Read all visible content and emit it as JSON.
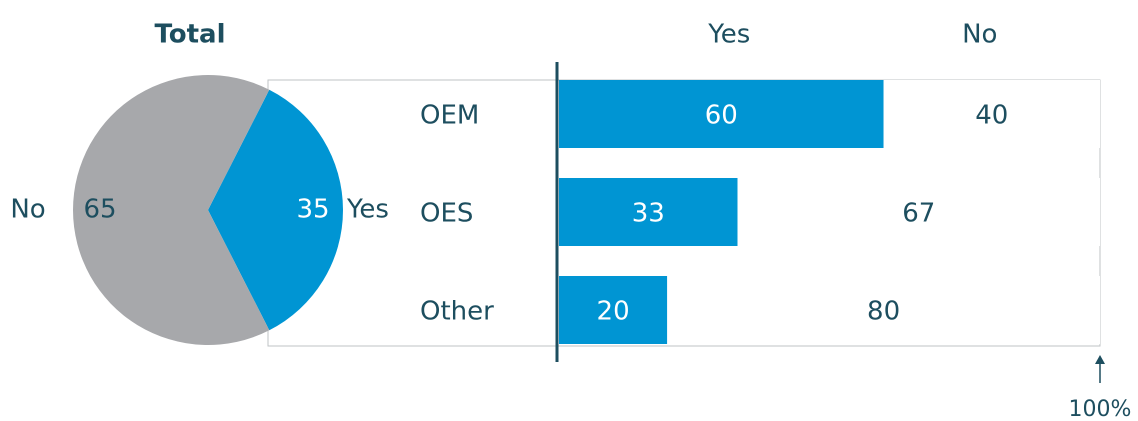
{
  "chart_data": [
    {
      "type": "pie",
      "title": "Total",
      "categories": [
        "Yes",
        "No"
      ],
      "values": [
        35,
        65
      ],
      "colors": [
        "#0095d3",
        "#a7a8ab"
      ]
    },
    {
      "type": "stacked-bar",
      "orientation": "horizontal",
      "categories": [
        "OEM",
        "OES",
        "Other"
      ],
      "series": [
        {
          "name": "Yes",
          "color": "#0095d3",
          "values": [
            60,
            33,
            20
          ]
        },
        {
          "name": "No",
          "color": "#ffffff",
          "values": [
            40,
            67,
            80
          ]
        }
      ],
      "xlim": [
        0,
        100
      ],
      "xticks": [
        {
          "value": 100,
          "label": "100%"
        }
      ]
    }
  ]
}
